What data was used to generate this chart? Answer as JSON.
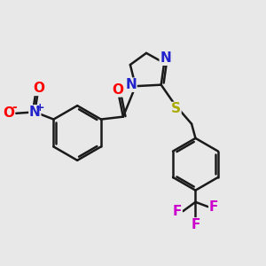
{
  "bg_color": "#e8e8e8",
  "bond_color": "#1a1a1a",
  "bond_width": 1.8,
  "atom_colors": {
    "O": "#ff0000",
    "N": "#2222cc",
    "S": "#aaaa00",
    "F": "#cc00cc",
    "C": "#1a1a1a"
  },
  "font_size": 11,
  "xlim": [
    0,
    10
  ],
  "ylim": [
    0,
    10
  ]
}
